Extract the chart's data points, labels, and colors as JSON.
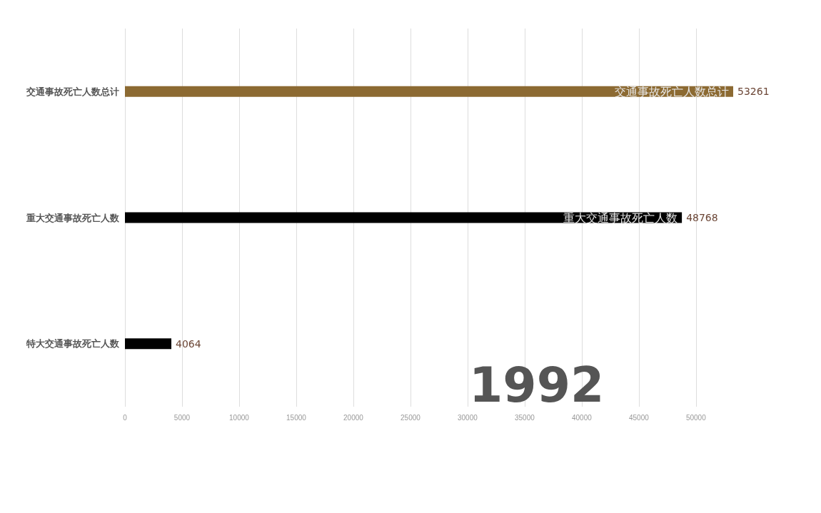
{
  "chart_data": {
    "type": "bar",
    "orientation": "horizontal",
    "categories": [
      "交通事故死亡人数总计",
      "重大交通事故死亡人数",
      "特大交通事故死亡人数"
    ],
    "values": [
      53261,
      48768,
      4064
    ],
    "colors": [
      "#8c6a32",
      "#000000",
      "#000000"
    ],
    "xlim": [
      0,
      53261
    ],
    "xticks": [
      0,
      5000,
      10000,
      15000,
      20000,
      25000,
      30000,
      35000,
      40000,
      45000,
      50000
    ],
    "grid": "x",
    "data_labels": true,
    "annotations": [
      "1992"
    ]
  }
}
